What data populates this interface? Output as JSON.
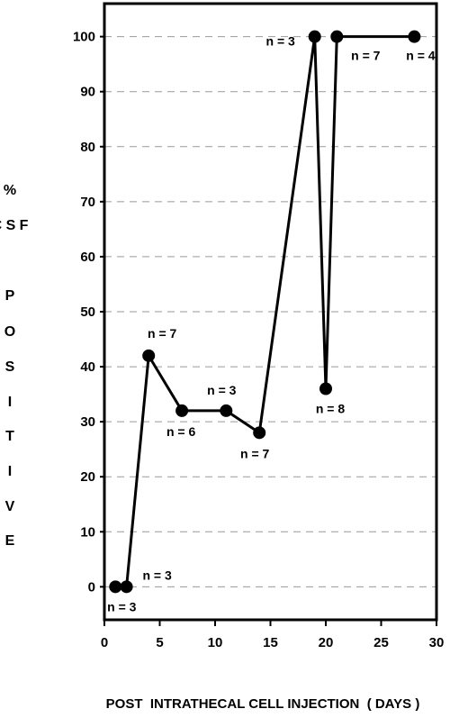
{
  "chart_data": {
    "type": "line",
    "title": "",
    "xlabel": "POST  INTRATHECAL CELL INJECTION  ( DAYS )",
    "ylabel_lines": [
      "%",
      "C S F",
      "P",
      "O",
      "S",
      "I",
      "T",
      "I",
      "V",
      "E"
    ],
    "xlim": [
      0,
      30
    ],
    "ylim": [
      -6,
      106
    ],
    "x_ticks": [
      0,
      5,
      10,
      15,
      20,
      25,
      30
    ],
    "y_ticks": [
      0,
      10,
      20,
      30,
      40,
      50,
      60,
      70,
      80,
      90,
      100
    ],
    "grid": "horizontal-dashed",
    "series": [
      {
        "x": [
          1,
          2,
          4,
          7,
          11,
          14,
          19,
          20,
          21,
          28
        ],
        "y": [
          0,
          0,
          42,
          32,
          32,
          28,
          100,
          36,
          100,
          100
        ]
      }
    ],
    "annotations": [
      {
        "text": "n = 3",
        "x": 1,
        "y": 0
      },
      {
        "text": "n = 3",
        "x": 2,
        "y": 0
      },
      {
        "text": "n = 7",
        "x": 4,
        "y": 42
      },
      {
        "text": "n = 6",
        "x": 7,
        "y": 32
      },
      {
        "text": "n = 3",
        "x": 11,
        "y": 32
      },
      {
        "text": "n = 7",
        "x": 14,
        "y": 28
      },
      {
        "text": "n = 3",
        "x": 19,
        "y": 100
      },
      {
        "text": "n = 8",
        "x": 20,
        "y": 36
      },
      {
        "text": "n = 7",
        "x": 21,
        "y": 100
      },
      {
        "text": "n = 4",
        "x": 28,
        "y": 100
      }
    ]
  }
}
